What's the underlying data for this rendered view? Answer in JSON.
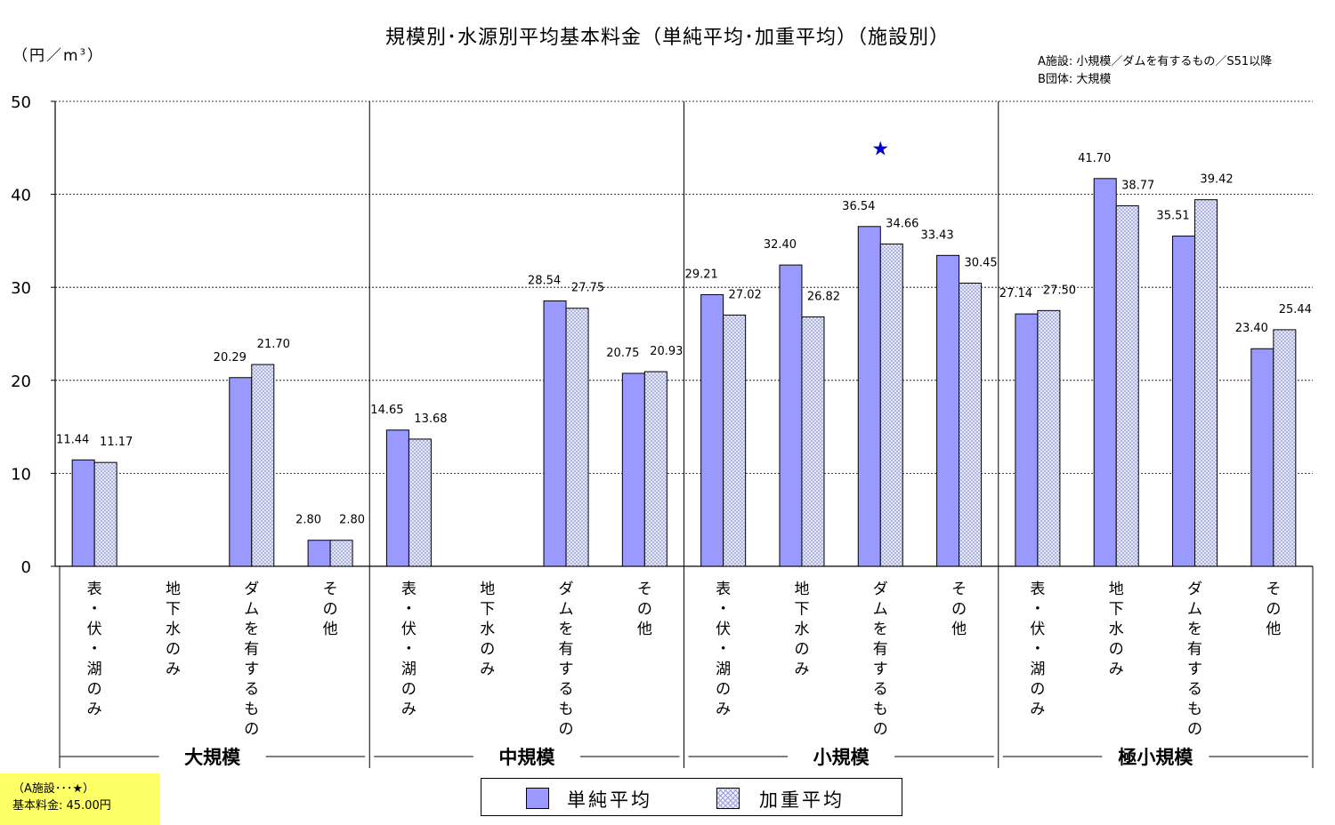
{
  "title": "規模別･水源別平均基本料金（単純平均･加重平均）（施設別）",
  "unit_label": "（円／m",
  "unit_sup": "3",
  "unit_close": "）",
  "notes": [
    "A施設: 小規模／ダムを有するもの／S51以降",
    "B団体: 大規模"
  ],
  "callout": {
    "line1": "（A施設･･･★）",
    "line2": "基本料金: 45.00円"
  },
  "legend": [
    {
      "label": "単純平均",
      "style": "solid"
    },
    {
      "label": "加重平均",
      "style": "hatch"
    }
  ],
  "colors": {
    "simple": "#9999ff",
    "weighted": "#eef0ff",
    "hatch": "#9ca2d6",
    "star": "#0000cc",
    "callout_bg": "#ffff66"
  },
  "chart_data": {
    "type": "bar",
    "title": "規模別･水源別平均基本料金（単純平均･加重平均）（施設別）",
    "ylabel": "（円／m3）",
    "ylim": [
      0,
      50
    ],
    "yticks": [
      "0",
      "10",
      "20",
      "30",
      "40",
      "50"
    ],
    "grid": true,
    "legend_position": "bottom",
    "groups": [
      "大規模",
      "中規模",
      "小規模",
      "極小規模"
    ],
    "categories": [
      "表・伏・湖のみ",
      "地下水のみ",
      "ダムを有するもの",
      "その他"
    ],
    "series": [
      {
        "name": "単純平均",
        "values": [
          [
            11.44,
            null,
            20.29,
            2.8
          ],
          [
            14.65,
            null,
            28.54,
            20.75
          ],
          [
            29.21,
            32.4,
            36.54,
            33.43
          ],
          [
            27.14,
            41.7,
            35.51,
            23.4
          ]
        ]
      },
      {
        "name": "加重平均",
        "values": [
          [
            11.17,
            null,
            21.7,
            2.8
          ],
          [
            13.68,
            null,
            27.75,
            20.93
          ],
          [
            27.02,
            26.82,
            34.66,
            30.45
          ],
          [
            27.5,
            38.77,
            39.42,
            25.44
          ]
        ]
      }
    ],
    "labels": [
      [
        [
          "11.44",
          "11.17"
        ],
        [
          "",
          ""
        ],
        [
          "20.29",
          "21.70"
        ],
        [
          "2.80",
          "2.80"
        ]
      ],
      [
        [
          "14.65",
          "13.68"
        ],
        [
          "",
          ""
        ],
        [
          "28.54",
          "27.75"
        ],
        [
          "20.75",
          "20.93"
        ]
      ],
      [
        [
          "29.21",
          "27.02"
        ],
        [
          "32.40",
          "26.82"
        ],
        [
          "36.54",
          "34.66"
        ],
        [
          "33.43",
          "30.45"
        ]
      ],
      [
        [
          "27.14",
          "27.50"
        ],
        [
          "41.70",
          "38.77"
        ],
        [
          "35.51",
          "39.42"
        ],
        [
          "23.40",
          "25.44"
        ]
      ]
    ],
    "annotations": [
      {
        "label": "★",
        "group": 2,
        "category": 2,
        "value": 45.0
      }
    ]
  }
}
